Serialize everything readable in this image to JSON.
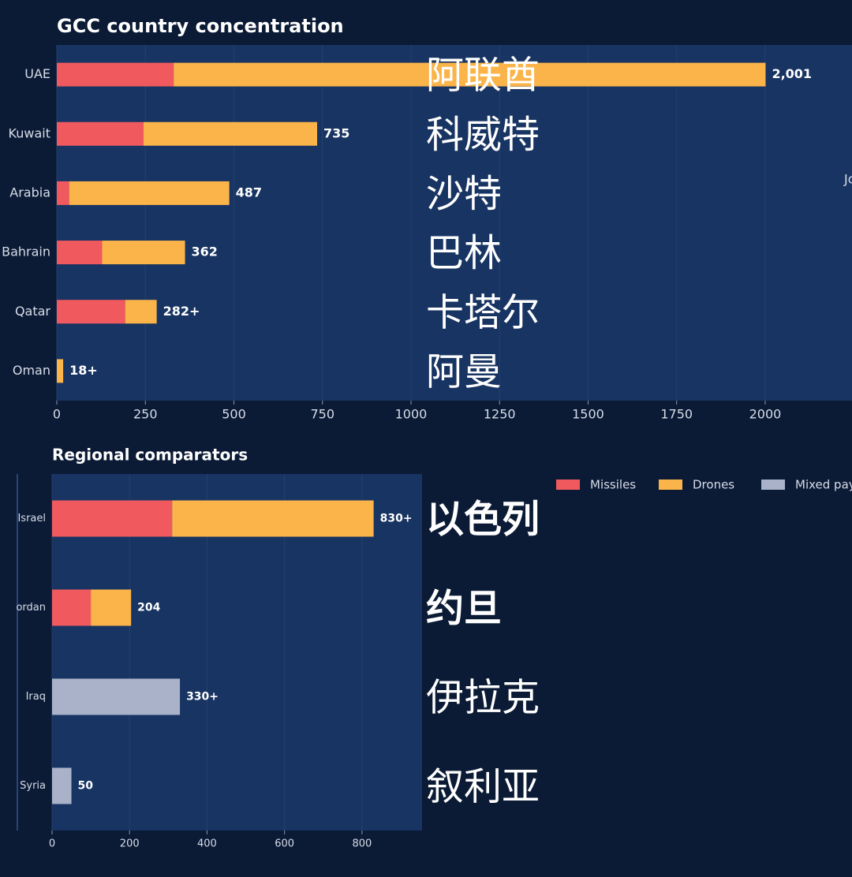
{
  "chart_data": [
    {
      "type": "stacked-barh",
      "title": "GCC country concentration",
      "categories": [
        "UAE",
        "Kuwait",
        "Arabia",
        "Bahrain",
        "Qatar",
        "Oman"
      ],
      "series": [
        {
          "name": "Missiles",
          "color": "#f05a5e",
          "values": [
            330,
            245,
            35,
            128,
            193,
            0
          ]
        },
        {
          "name": "Drones",
          "color": "#fbb44a",
          "values": [
            1671,
            490,
            452,
            234,
            89,
            18
          ]
        }
      ],
      "totals": [
        2001,
        735,
        487,
        362,
        282,
        18
      ],
      "total_labels": [
        "2,001",
        "735",
        "487",
        "362",
        "282+",
        "18+"
      ],
      "annotations": [
        "阿联酋",
        "科威特",
        "沙特",
        "巴林",
        "卡塔尔",
        "阿曼"
      ],
      "annotation_bold": [
        false,
        false,
        false,
        false,
        false,
        false
      ],
      "cropped_label": "Jo",
      "xlim": [
        0,
        2245
      ],
      "xticks": [
        0,
        250,
        500,
        750,
        1000,
        1250,
        1500,
        1750,
        2000
      ],
      "grid": true
    },
    {
      "type": "stacked-barh",
      "title": "Regional comparators",
      "categories": [
        "Israel",
        "ordan",
        "Iraq",
        "Syria"
      ],
      "series": [
        {
          "name": "Missiles",
          "color": "#f05a5e",
          "values": [
            310,
            100,
            null,
            null
          ]
        },
        {
          "name": "Drones",
          "color": "#fbb44a",
          "values": [
            520,
            104,
            null,
            null
          ]
        },
        {
          "name": "Mixed pay",
          "color": "#a9b2c8",
          "values": [
            null,
            null,
            330,
            50
          ]
        }
      ],
      "totals": [
        830,
        204,
        330,
        50
      ],
      "total_labels": [
        "830+",
        "204",
        "330+",
        "50"
      ],
      "annotations": [
        "以色列",
        "约旦",
        "伊拉克",
        "叙利亚"
      ],
      "annotation_bold": [
        true,
        true,
        false,
        false
      ],
      "legend": "top-right",
      "xlim": [
        0,
        955
      ],
      "xticks": [
        0,
        200,
        400,
        600,
        800
      ],
      "grid": true
    }
  ]
}
